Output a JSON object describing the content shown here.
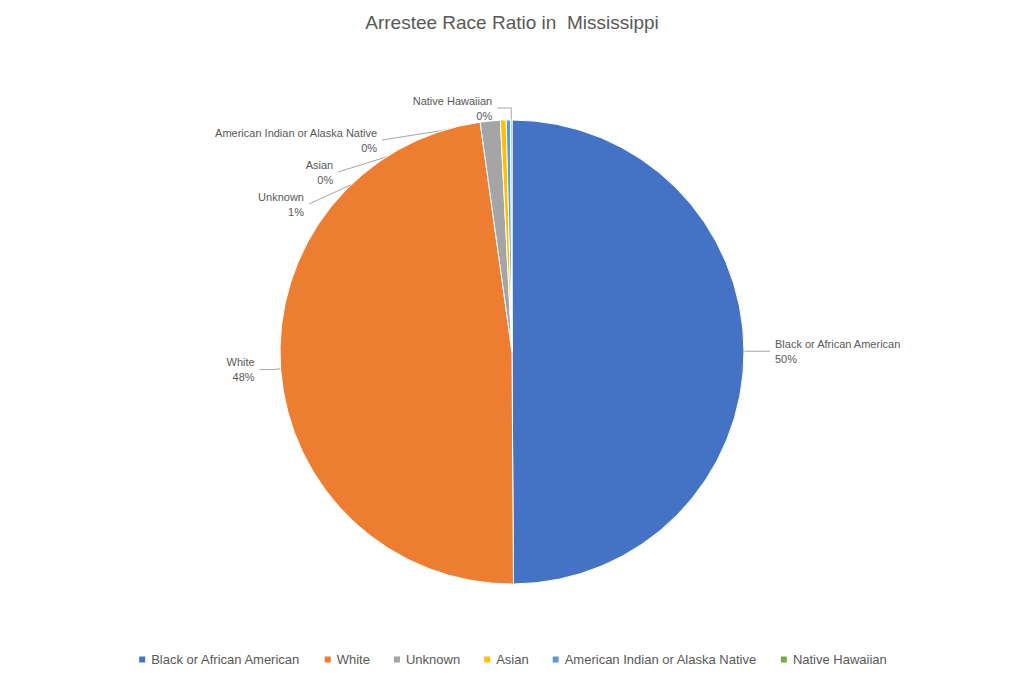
{
  "chart_data": {
    "type": "pie",
    "title": "Arrestee Race Ratio in  Mississippi",
    "categories": [
      "Black or African American",
      "White",
      "Unknown",
      "Asian",
      "American Indian or Alaska Native",
      "Native Hawaiian"
    ],
    "values": [
      50,
      48,
      1.4,
      0.4,
      0.3,
      0.1
    ],
    "value_labels": [
      "50%",
      "48%",
      "1%",
      "0%",
      "0%",
      "0%"
    ],
    "colors": [
      "#4472c4",
      "#ed7d31",
      "#a5a5a5",
      "#ffc000",
      "#5b9bd5",
      "#70ad47"
    ],
    "data_labels": true,
    "legend": "bottom"
  }
}
